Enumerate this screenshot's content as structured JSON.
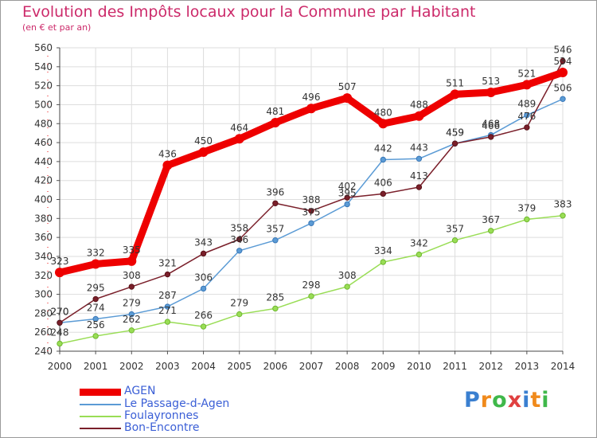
{
  "title": "Evolution des Impôts locaux pour la Commune par Habitant",
  "subtitle": "(en € et par an)",
  "logo": {
    "text": "Proxiti",
    "letters": [
      "P",
      "r",
      "o",
      "x",
      "i",
      "t",
      "i"
    ],
    "colors": [
      "#3a7fd0",
      "#f08a1c",
      "#3fb84a",
      "#e04040",
      "#3a7fd0",
      "#f08a1c",
      "#3fb84a"
    ]
  },
  "chart_data": {
    "type": "line",
    "x": [
      "2000",
      "2001",
      "2002",
      "2003",
      "2004",
      "2005",
      "2006",
      "2007",
      "2008",
      "2009",
      "2010",
      "2011",
      "2012",
      "2013",
      "2014"
    ],
    "ylim": [
      240,
      560
    ],
    "yticks": [
      240,
      260,
      280,
      300,
      320,
      340,
      360,
      380,
      400,
      420,
      440,
      460,
      480,
      500,
      520,
      540,
      560
    ],
    "grid": true,
    "legend_position": "bottom-left",
    "series": [
      {
        "name": "AGEN",
        "color": "#ee0000",
        "width": 9,
        "marker": 6,
        "values": [
          323,
          332,
          335,
          436,
          450,
          464,
          481,
          496,
          507,
          480,
          488,
          511,
          513,
          521,
          534
        ],
        "labels": [
          "323",
          "332",
          "335",
          "436",
          "450",
          "464",
          "481",
          "496",
          "507",
          "480",
          "488",
          "511",
          "513",
          "521",
          "534"
        ]
      },
      {
        "name": "Le Passage-d-Agen",
        "color": "#5b9bd5",
        "width": 1.5,
        "marker": 3.2,
        "values": [
          270,
          274,
          279,
          287,
          306,
          346,
          357,
          375,
          395,
          442,
          443,
          459,
          468,
          489,
          506
        ],
        "labels": [
          "270",
          "274",
          "279",
          "287",
          "306",
          "346",
          "357",
          "375",
          "395",
          "442",
          "443",
          "459",
          "468",
          "489",
          "506"
        ]
      },
      {
        "name": "Foulayronnes",
        "color": "#99dd55",
        "width": 1.5,
        "marker": 3.2,
        "values": [
          248,
          256,
          262,
          271,
          266,
          279,
          285,
          298,
          308,
          334,
          342,
          357,
          367,
          379,
          383
        ],
        "labels": [
          "248",
          "256",
          "262",
          "271",
          "266",
          "279",
          "285",
          "298",
          "308",
          "334",
          "342",
          "357",
          "367",
          "379",
          "383"
        ]
      },
      {
        "name": "Bon-Encontre",
        "color": "#7a1f2a",
        "width": 1.5,
        "marker": 3.2,
        "values": [
          270,
          295,
          308,
          321,
          343,
          358,
          396,
          388,
          402,
          406,
          413,
          459,
          466,
          476,
          546
        ],
        "labels": [
          "270",
          "295",
          "308",
          "321",
          "343",
          "358",
          "396",
          "388",
          "402",
          "406",
          "413",
          "459",
          "466",
          "476",
          "546"
        ]
      }
    ]
  }
}
